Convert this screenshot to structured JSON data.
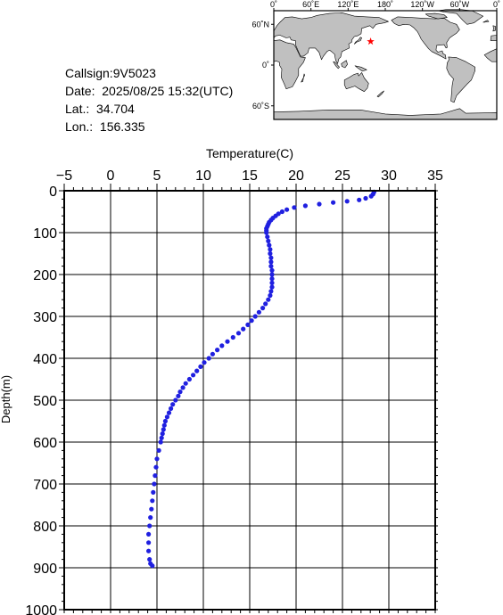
{
  "info": {
    "callsign": "Callsign:9V5023",
    "date": "Date:  2025/08/25 15:32(UTC)",
    "lat": "Lat.:  34.704",
    "lon": "Lon.:  156.335"
  },
  "map": {
    "top_labels": [
      "0˚",
      "60˚E",
      "120˚E",
      "180˚",
      "120˚W",
      "60˚W",
      "0˚"
    ],
    "lat_labels": [
      "60˚N",
      "0˚",
      "60˚S"
    ],
    "ocean_color": "#ffffff",
    "land_color": "#c0c0c0",
    "marker": {
      "symbol": "red-star",
      "color": "#ff0000",
      "lat": 34.704,
      "lon": 156.335
    }
  },
  "chart_data": {
    "type": "scatter",
    "title": "",
    "xlabel": "Temperature(C)",
    "ylabel": "Depth(m)",
    "xlim": [
      -5,
      35
    ],
    "ylim": [
      0,
      1000
    ],
    "y_inverted": true,
    "x_axis_position": "top",
    "x_ticks": [
      "-5",
      "0",
      "5",
      "10",
      "15",
      "20",
      "25",
      "30",
      "35"
    ],
    "y_ticks": [
      "0",
      "100",
      "200",
      "300",
      "400",
      "500",
      "600",
      "700",
      "800",
      "900",
      "1000"
    ],
    "grid": true,
    "marker_color": "#2020e0",
    "series": [
      {
        "depth": [
          3,
          8,
          13,
          18,
          22,
          25,
          28,
          32,
          36,
          40,
          45,
          50,
          55,
          60,
          65,
          70,
          75,
          80,
          85,
          90,
          95,
          100,
          110,
          120,
          130,
          140,
          150,
          160,
          170,
          180,
          190,
          200,
          210,
          220,
          230,
          240,
          250,
          260,
          270,
          280,
          290,
          300,
          310,
          320,
          330,
          340,
          350,
          360,
          370,
          380,
          390,
          400,
          410,
          420,
          430,
          440,
          450,
          460,
          470,
          480,
          490,
          500,
          510,
          520,
          530,
          540,
          550,
          560,
          570,
          580,
          590,
          600,
          620,
          640,
          660,
          680,
          700,
          720,
          740,
          760,
          780,
          800,
          820,
          840,
          860,
          880,
          890,
          895
        ],
        "temperature": [
          28.4,
          28.3,
          28.1,
          27.5,
          26.8,
          25.5,
          24.0,
          22.5,
          21.0,
          19.8,
          19.0,
          18.5,
          18.1,
          17.8,
          17.5,
          17.3,
          17.1,
          17.0,
          16.9,
          16.8,
          16.8,
          16.8,
          16.9,
          17.0,
          17.1,
          17.2,
          17.2,
          17.3,
          17.3,
          17.3,
          17.4,
          17.4,
          17.4,
          17.4,
          17.4,
          17.3,
          17.2,
          17.0,
          16.7,
          16.4,
          16.0,
          15.6,
          15.2,
          14.8,
          14.3,
          13.8,
          13.2,
          12.6,
          12.0,
          11.5,
          11.0,
          10.6,
          10.1,
          9.7,
          9.3,
          8.9,
          8.5,
          8.1,
          7.8,
          7.5,
          7.3,
          7.0,
          6.7,
          6.5,
          6.3,
          6.1,
          5.9,
          5.8,
          5.7,
          5.6,
          5.5,
          5.4,
          5.2,
          5.0,
          4.9,
          4.8,
          4.7,
          4.6,
          4.5,
          4.4,
          4.3,
          4.2,
          4.1,
          4.1,
          4.1,
          4.2,
          4.3,
          4.5
        ]
      }
    ]
  }
}
